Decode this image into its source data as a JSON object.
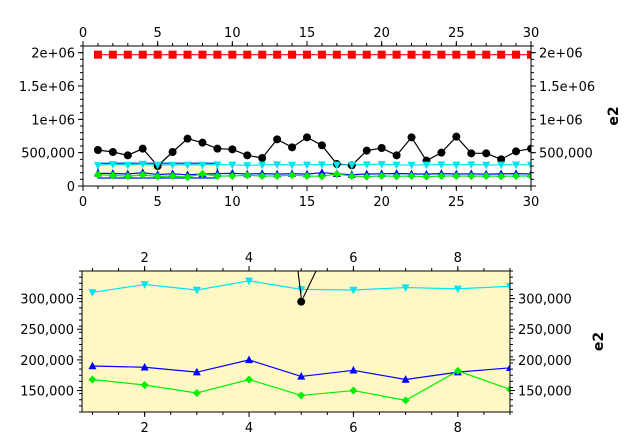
{
  "chart_data": [
    {
      "type": "line",
      "panel": "overview",
      "xlim": [
        0,
        30
      ],
      "ylim": [
        0,
        2100000
      ],
      "x_ticks": [
        0,
        5,
        10,
        15,
        20,
        25,
        30
      ],
      "y_ticks": [
        0,
        500000,
        1000000,
        1500000,
        2000000
      ],
      "y_tick_labels_left": [
        "0",
        "500,000",
        "1e+06",
        "1.5e+06",
        "2e+06"
      ],
      "y_tick_labels_right": [
        "500,000",
        "1e+06",
        "1.5e+06",
        "2e+06"
      ],
      "y_label_right": "e2",
      "x": [
        1,
        2,
        3,
        4,
        5,
        6,
        7,
        8,
        9,
        10,
        11,
        12,
        13,
        14,
        15,
        16,
        17,
        18,
        19,
        20,
        21,
        22,
        23,
        24,
        25,
        26,
        27,
        28,
        29,
        30
      ],
      "series": [
        {
          "marker": "square",
          "color": "#ff0000",
          "values": [
            1970000,
            1970000,
            1970000,
            1970000,
            1970000,
            1970000,
            1970000,
            1970000,
            1970000,
            1970000,
            1970000,
            1970000,
            1970000,
            1970000,
            1970000,
            1970000,
            1970000,
            1970000,
            1970000,
            1970000,
            1970000,
            1970000,
            1970000,
            1970000,
            1970000,
            1970000,
            1970000,
            1970000,
            1970000,
            1970000
          ]
        },
        {
          "marker": "circle",
          "color": "#000000",
          "values": [
            540000,
            510000,
            460000,
            560000,
            300000,
            510000,
            710000,
            650000,
            560000,
            550000,
            460000,
            420000,
            700000,
            580000,
            730000,
            610000,
            330000,
            310000,
            530000,
            570000,
            460000,
            730000,
            380000,
            500000,
            740000,
            490000,
            490000,
            400000,
            520000,
            560000
          ]
        },
        {
          "marker": "triangle-down",
          "color": "#00e5ee",
          "values": [
            310000,
            325000,
            315000,
            330000,
            315000,
            315000,
            318000,
            316000,
            322000,
            318000,
            308000,
            316000,
            322000,
            315000,
            318000,
            322000,
            318000,
            315000,
            322000,
            326000,
            318000,
            315000,
            318000,
            322000,
            318000,
            322000,
            315000,
            318000,
            320000,
            316000
          ]
        },
        {
          "marker": "triangle-up",
          "color": "#0000ff",
          "values": [
            190000,
            188000,
            180000,
            200000,
            172000,
            183000,
            168000,
            180000,
            186000,
            190000,
            180000,
            186000,
            178000,
            185000,
            178000,
            200000,
            183000,
            170000,
            180000,
            183000,
            188000,
            182000,
            178000,
            186000,
            180000,
            183000,
            178000,
            182000,
            186000,
            180000
          ]
        },
        {
          "marker": "diamond",
          "color": "#00ee00",
          "values": [
            168000,
            160000,
            146000,
            168000,
            142000,
            150000,
            134000,
            182000,
            150000,
            150000,
            160000,
            150000,
            150000,
            162000,
            150000,
            145000,
            180000,
            150000,
            140000,
            152000,
            145000,
            150000,
            140000,
            150000,
            150000,
            148000,
            150000,
            145000,
            150000,
            150000
          ]
        }
      ],
      "zoom_box": {
        "x": [
          1,
          9
        ],
        "y": [
          120000,
          340000
        ]
      }
    },
    {
      "type": "line",
      "panel": "zoom",
      "xlim": [
        0.8,
        9
      ],
      "ylim": [
        115000,
        345000
      ],
      "x_ticks": [
        2,
        4,
        6,
        8
      ],
      "y_ticks": [
        150000,
        200000,
        250000,
        300000
      ],
      "y_tick_labels": [
        "150,000",
        "200,000",
        "250,000",
        "300,000"
      ],
      "y_label_right": "e2",
      "background": "#fff8c4",
      "x": [
        1,
        2,
        3,
        4,
        5,
        6,
        7,
        8,
        9
      ],
      "series": [
        {
          "marker": "triangle-down",
          "color": "#00e5ee",
          "values": [
            310000,
            323000,
            314000,
            329000,
            315000,
            314000,
            318000,
            316000,
            320000
          ]
        },
        {
          "marker": "triangle-up",
          "color": "#0000ff",
          "values": [
            190000,
            188000,
            180000,
            200000,
            173000,
            183000,
            168000,
            180000,
            187000
          ]
        },
        {
          "marker": "diamond",
          "color": "#00ee00",
          "values": [
            168000,
            159000,
            146000,
            168000,
            142000,
            150000,
            134000,
            182000,
            152000
          ]
        },
        {
          "marker": "circle",
          "color": "#000000",
          "values": [
            null,
            null,
            null,
            null,
            295000,
            null,
            null,
            null,
            null
          ]
        }
      ]
    }
  ]
}
